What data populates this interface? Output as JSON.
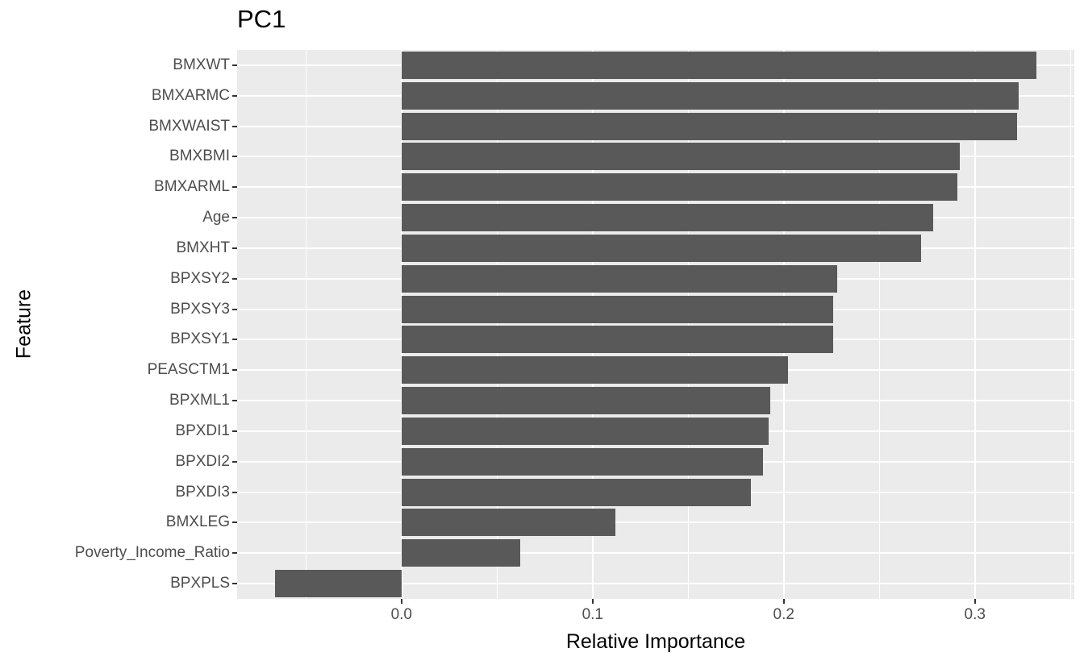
{
  "chart_data": {
    "type": "bar",
    "orientation": "horizontal",
    "title": "PC1",
    "xlabel": "Relative Importance",
    "ylabel": "Feature",
    "categories": [
      "BMXWT",
      "BMXARMC",
      "BMXWAIST",
      "BMXBMI",
      "BMXARML",
      "Age",
      "BMXHT",
      "BPXSY2",
      "BPXSY3",
      "BPXSY1",
      "PEASCTM1",
      "BPXML1",
      "BPXDI1",
      "BPXDI2",
      "BPXDI3",
      "BMXLEG",
      "Poverty_Income_Ratio",
      "BPXPLS"
    ],
    "values": [
      0.332,
      0.323,
      0.322,
      0.292,
      0.291,
      0.278,
      0.272,
      0.228,
      0.226,
      0.226,
      0.202,
      0.193,
      0.192,
      0.189,
      0.183,
      0.112,
      0.062,
      -0.066
    ],
    "xlim": [
      -0.086,
      0.352
    ],
    "x_major_ticks": [
      0.0,
      0.1,
      0.2,
      0.3
    ],
    "x_major_tick_labels": [
      "0.0",
      "0.1",
      "0.2",
      "0.3"
    ],
    "x_minor_ticks": [
      -0.05,
      0.05,
      0.15,
      0.25,
      0.35
    ],
    "grid": true,
    "legend_position": "none",
    "colors": {
      "bar_fill": "#595959",
      "panel_background": "#EBEBEB",
      "gridline": "#FFFFFF",
      "tick_mark": "#333333",
      "tick_label": "#4D4D4D",
      "title_text": "#000000"
    }
  }
}
